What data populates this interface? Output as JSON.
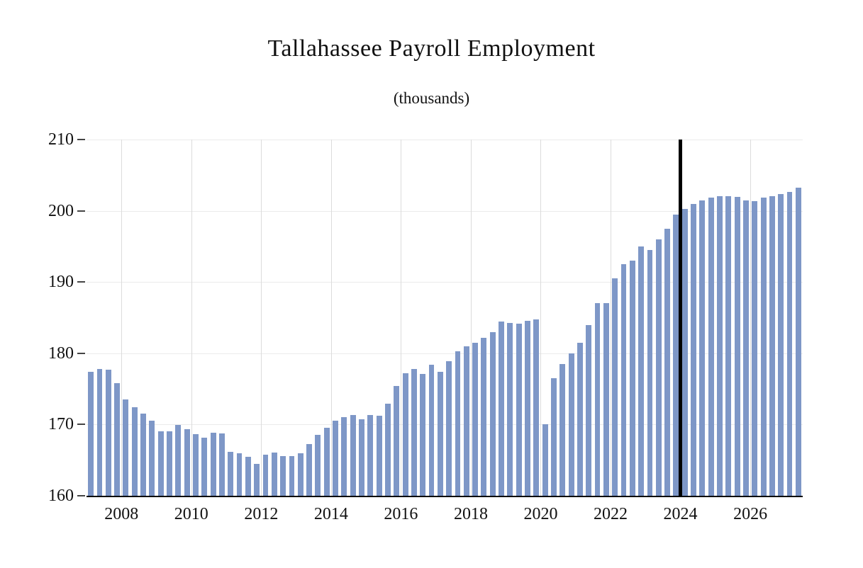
{
  "chart_data": {
    "type": "bar",
    "title": "Tallahassee Payroll Employment",
    "subtitle": "(thousands)",
    "unit": "thousands",
    "frequency": "quarterly",
    "start_year": 2007,
    "start_quarter": 1,
    "end_year": 2027,
    "end_quarter": 2,
    "values": [
      177.4,
      177.8,
      177.7,
      175.8,
      173.5,
      172.4,
      171.5,
      170.5,
      169.0,
      169.0,
      169.9,
      169.3,
      168.6,
      168.2,
      168.8,
      168.7,
      166.2,
      166.0,
      165.5,
      164.5,
      165.8,
      166.1,
      165.6,
      165.6,
      166.0,
      167.3,
      168.5,
      169.5,
      170.5,
      171.0,
      171.3,
      170.7,
      171.3,
      171.2,
      172.9,
      175.4,
      177.2,
      177.8,
      177.1,
      178.4,
      177.4,
      178.9,
      180.3,
      181.0,
      181.5,
      182.2,
      183.0,
      184.5,
      184.3,
      184.2,
      184.6,
      184.8,
      170.0,
      176.5,
      178.5,
      180.0,
      181.5,
      184.0,
      187.0,
      187.0,
      190.5,
      192.5,
      193.0,
      195.0,
      194.5,
      196.0,
      197.5,
      199.5,
      200.3,
      201.0,
      201.5,
      201.8,
      202.0,
      202.0,
      201.9,
      201.5,
      201.4,
      201.8,
      202.0,
      202.3,
      202.6,
      203.2
    ],
    "ylim": [
      160,
      210
    ],
    "yticks": [
      160,
      170,
      180,
      190,
      200,
      210
    ],
    "xticks": [
      2008,
      2010,
      2012,
      2014,
      2016,
      2018,
      2020,
      2022,
      2024,
      2026
    ],
    "forecast_divider_year": 2024.0,
    "bar_color": "#7e97c7",
    "divider_color": "#000000",
    "axis_color": "#000000",
    "vertical_gridline_color": "#dcdcdc",
    "horizontal_gridline_color": "#ebebeb",
    "legend": "none",
    "grid": "light vertical lines at labeled years, faint horizontal lines at y ticks"
  }
}
